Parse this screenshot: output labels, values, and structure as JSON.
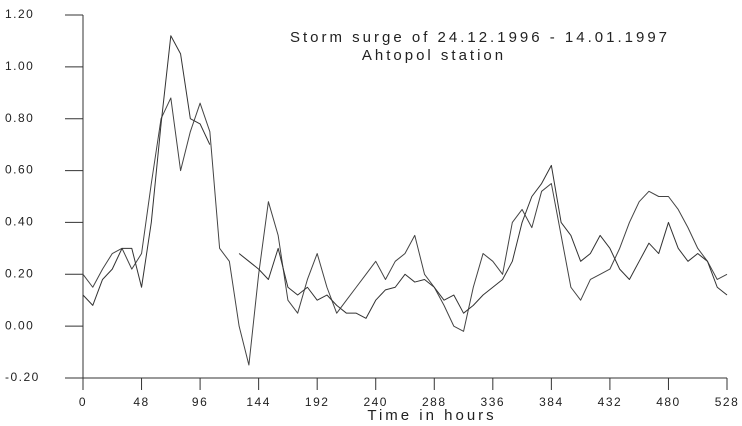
{
  "chart_data": {
    "type": "line",
    "title": "Storm surge of 24.12.1996 - 14.01.1997",
    "subtitle": "Ahtopol station",
    "x_label": "Time in hours",
    "x": [
      0,
      8,
      16,
      24,
      32,
      40,
      48,
      56,
      64,
      72,
      80,
      88,
      96,
      104,
      112,
      120,
      128,
      136,
      144,
      152,
      160,
      168,
      176,
      184,
      192,
      200,
      208,
      216,
      224,
      232,
      240,
      248,
      256,
      264,
      272,
      280,
      288,
      296,
      304,
      312,
      320,
      328,
      336,
      344,
      352,
      360,
      368,
      376,
      384,
      392,
      400,
      408,
      416,
      424,
      432,
      440,
      448,
      456,
      464,
      472,
      480,
      488,
      496,
      504,
      512,
      520,
      528
    ],
    "series": [
      {
        "color": "#444444",
        "values": [
          0.2,
          0.15,
          0.22,
          0.28,
          0.3,
          0.22,
          0.28,
          0.55,
          0.8,
          0.88,
          0.6,
          0.75,
          0.86,
          0.75,
          0.3,
          0.25,
          0.0,
          -0.15,
          0.2,
          0.48,
          0.35,
          0.1,
          0.05,
          0.18,
          0.28,
          0.15,
          0.05,
          0.1,
          0.15,
          0.2,
          0.25,
          0.18,
          0.25,
          0.28,
          0.35,
          0.2,
          0.15,
          0.08,
          0.0,
          -0.02,
          0.15,
          0.28,
          0.25,
          0.2,
          0.4,
          0.45,
          0.38,
          0.52,
          0.55,
          0.35,
          0.15,
          0.1,
          0.18,
          0.2,
          0.22,
          0.3,
          0.4,
          0.48,
          0.52,
          0.5,
          0.5,
          0.45,
          0.38,
          0.3,
          0.25,
          0.18,
          0.2
        ]
      },
      {
        "color": "#333333",
        "values": [
          0.12,
          0.08,
          0.18,
          0.22,
          0.3,
          0.3,
          0.15,
          0.4,
          0.78,
          1.12,
          1.05,
          0.8,
          0.78,
          0.7,
          null,
          null,
          0.28,
          0.25,
          0.22,
          0.18,
          0.3,
          0.15,
          0.12,
          0.15,
          0.1,
          0.12,
          0.08,
          0.05,
          0.05,
          0.03,
          0.1,
          0.14,
          0.15,
          0.2,
          0.17,
          0.18,
          0.15,
          0.1,
          0.12,
          0.05,
          0.08,
          0.12,
          0.15,
          0.18,
          0.25,
          0.4,
          0.5,
          0.55,
          0.62,
          0.4,
          0.35,
          0.25,
          0.28,
          0.35,
          0.3,
          0.22,
          0.18,
          0.25,
          0.32,
          0.28,
          0.4,
          0.3,
          0.25,
          0.28,
          0.25,
          0.15,
          0.12
        ]
      }
    ],
    "xlim": [
      0,
      528
    ],
    "xticks": [
      0,
      48,
      96,
      144,
      192,
      240,
      288,
      336,
      384,
      432,
      480,
      528
    ],
    "ylim": [
      -0.2,
      1.2
    ],
    "yticks": [
      {
        "value": 1.2,
        "label": "1.20"
      },
      {
        "value": 1.0,
        "label": "1.00"
      },
      {
        "value": 0.8,
        "label": "0.80"
      },
      {
        "value": 0.6,
        "label": "0.60"
      },
      {
        "value": 0.4,
        "label": "0.40"
      },
      {
        "value": 0.2,
        "label": "0.20"
      },
      {
        "value": 0,
        "label": "0.00"
      },
      {
        "value": -0.2,
        "label": "-0.20"
      }
    ],
    "grid": false
  }
}
